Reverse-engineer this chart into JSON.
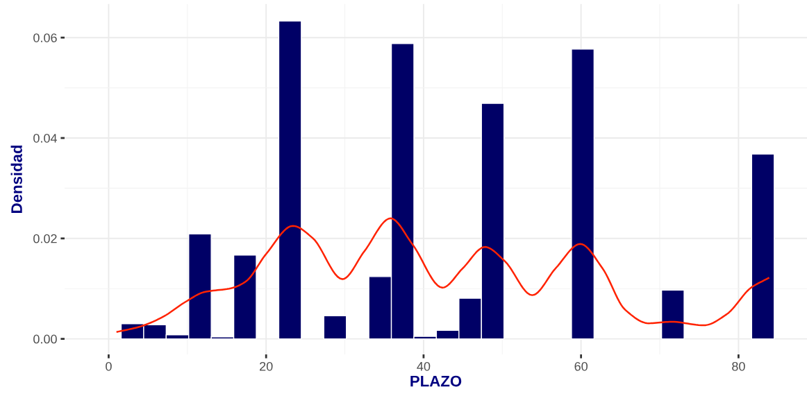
{
  "chart_data": {
    "type": "histogram",
    "xlabel": "PLAZO",
    "ylabel": "Densidad",
    "xlim": [
      -5.6,
      88.7
    ],
    "ylim": [
      -0.0031,
      0.0667
    ],
    "xticks": [
      0,
      20,
      40,
      60,
      80
    ],
    "yticks": [
      {
        "value": 0,
        "label": "0.00"
      },
      {
        "value": 0.02,
        "label": "0.02"
      },
      {
        "value": 0.04,
        "label": "0.04"
      },
      {
        "value": 0.06,
        "label": "0.06"
      }
    ],
    "grid": true,
    "series": [
      {
        "color": "#000066",
        "bins": [
          1.59,
          4.45,
          7.31,
          10.17,
          13.03,
          15.89,
          18.75,
          21.61,
          24.47,
          27.33,
          30.19,
          33.05,
          35.91,
          38.77,
          41.63,
          44.49,
          47.35,
          50.21,
          53.07,
          55.93,
          58.79,
          61.65,
          64.51,
          67.37,
          70.23,
          73.09,
          75.95,
          78.81,
          81.67,
          84.53
        ],
        "values": [
          0.003,
          0.0028,
          0.0008,
          0.0209,
          0.0004,
          0.0167,
          0,
          0.0633,
          0,
          0.0046,
          0,
          0.0124,
          0.0588,
          0.0005,
          0.0017,
          0.0081,
          0.0469,
          0,
          0,
          0,
          0.0577,
          0,
          0,
          0,
          0.0097,
          0,
          0,
          0,
          0.0368
        ]
      },
      {
        "type": "line",
        "color": "#ff2200",
        "x": [
          1.1,
          3.9,
          6.8,
          9.8,
          12.1,
          15.6,
          17.4,
          20.0,
          23.4,
          25.9,
          29.7,
          32.5,
          35.8,
          38.6,
          42.4,
          45.0,
          47.8,
          50.3,
          53.8,
          56.8,
          59.9,
          62.7,
          65.6,
          68.6,
          71.5,
          75.6,
          78.5,
          81.6,
          83.8
        ],
        "values": [
          0.0014,
          0.0024,
          0.0043,
          0.0074,
          0.0093,
          0.0101,
          0.0114,
          0.0169,
          0.0225,
          0.0201,
          0.0119,
          0.0175,
          0.024,
          0.0188,
          0.0102,
          0.0141,
          0.0183,
          0.0155,
          0.0087,
          0.0141,
          0.0189,
          0.0141,
          0.0058,
          0.0031,
          0.0034,
          0.0027,
          0.0049,
          0.0102,
          0.0121
        ]
      }
    ]
  }
}
